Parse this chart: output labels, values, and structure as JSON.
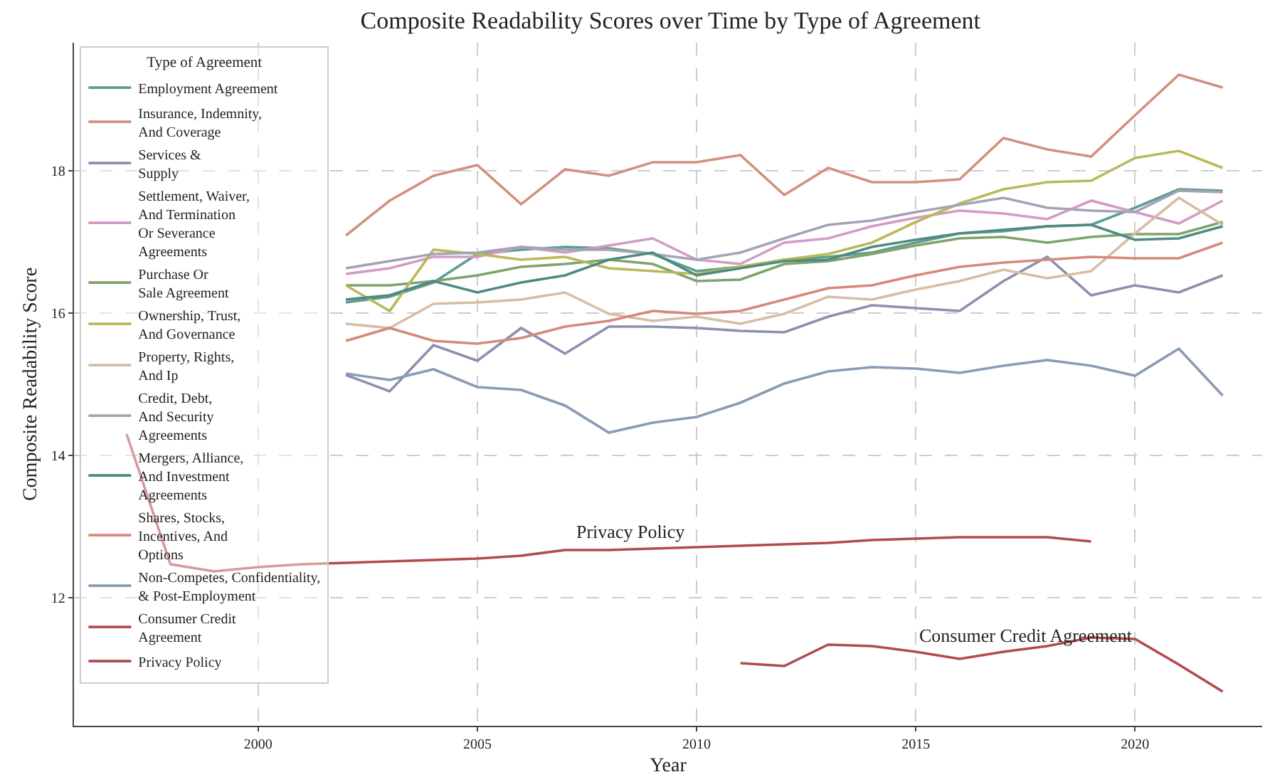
{
  "chart_data": {
    "type": "line",
    "title": "Composite Readability Scores over Time by Type of Agreement",
    "xlabel": "Year",
    "ylabel": "Composite Readability Score",
    "legend_title": "Type of Agreement",
    "legend": "top left",
    "grid": true,
    "line_style": "solid",
    "marker": "none",
    "xlim": [
      1995.8,
      2022.9
    ],
    "xticks": [
      2000,
      2005,
      2010,
      2015,
      2020
    ],
    "ylim": [
      10.2,
      19.8
    ],
    "yticks": [
      12,
      14,
      16,
      18
    ],
    "x": [
      2002,
      2003,
      2004,
      2005,
      2006,
      2007,
      2008,
      2009,
      2010,
      2011,
      2012,
      2013,
      2014,
      2015,
      2016,
      2017,
      2018,
      2019,
      2020,
      2021,
      2022
    ],
    "series": [
      {
        "name": "Employment Agreement",
        "color": "#5f9e8f",
        "values": [
          16.15,
          16.23,
          16.43,
          16.83,
          16.89,
          16.93,
          16.91,
          16.83,
          16.59,
          16.65,
          16.75,
          16.79,
          16.85,
          16.99,
          17.12,
          17.15,
          17.22,
          17.24,
          17.48,
          17.74,
          17.72
        ]
      },
      {
        "name": "Insurance, Indemnity,\nAnd Coverage",
        "color": "#d4907f",
        "values": [
          17.09,
          17.58,
          17.93,
          18.08,
          17.53,
          18.02,
          17.93,
          18.12,
          18.12,
          18.22,
          17.66,
          18.04,
          17.84,
          17.84,
          17.88,
          18.46,
          18.3,
          18.2,
          18.78,
          19.35,
          19.17
        ]
      },
      {
        "name": "Services &\nSupply",
        "color": "#8e8fb0",
        "values": [
          15.13,
          14.9,
          15.55,
          15.33,
          15.79,
          15.43,
          15.81,
          15.81,
          15.79,
          15.75,
          15.73,
          15.95,
          16.11,
          16.07,
          16.03,
          16.45,
          16.79,
          16.25,
          16.39,
          16.29,
          16.53
        ]
      },
      {
        "name": "Settlement, Waiver,\nAnd Termination\nOr Severance\nAgreements",
        "color": "#d39bc4",
        "values": [
          16.55,
          16.63,
          16.79,
          16.79,
          16.93,
          16.85,
          16.95,
          17.05,
          16.75,
          16.69,
          16.99,
          17.05,
          17.22,
          17.34,
          17.44,
          17.4,
          17.32,
          17.58,
          17.42,
          17.26,
          17.58
        ]
      },
      {
        "name": "Purchase Or\nSale Agreement",
        "color": "#7fa36a",
        "values": [
          16.39,
          16.39,
          16.45,
          16.53,
          16.65,
          16.69,
          16.75,
          16.69,
          16.45,
          16.47,
          16.69,
          16.73,
          16.83,
          16.95,
          17.05,
          17.07,
          16.99,
          17.07,
          17.11,
          17.11,
          17.28
        ]
      },
      {
        "name": "Ownership, Trust,\nAnd Governance",
        "color": "#b9b95a",
        "values": [
          16.39,
          16.03,
          16.89,
          16.83,
          16.75,
          16.79,
          16.63,
          16.59,
          16.55,
          16.65,
          16.75,
          16.83,
          16.99,
          17.28,
          17.54,
          17.74,
          17.84,
          17.86,
          18.18,
          18.28,
          18.04
        ]
      },
      {
        "name": "Property, Rights,\nAnd Ip",
        "color": "#d6bda6",
        "values": [
          15.85,
          15.79,
          16.13,
          16.15,
          16.19,
          16.29,
          15.99,
          15.89,
          15.95,
          15.85,
          15.99,
          16.23,
          16.19,
          16.33,
          16.45,
          16.61,
          16.49,
          16.59,
          17.12,
          17.62,
          17.24
        ]
      },
      {
        "name": "Credit, Debt,\nAnd Security\nAgreements",
        "color": "#a3a3b5",
        "values": [
          16.63,
          16.73,
          16.83,
          16.85,
          16.93,
          16.89,
          16.89,
          16.83,
          16.75,
          16.85,
          17.05,
          17.24,
          17.3,
          17.42,
          17.52,
          17.62,
          17.48,
          17.44,
          17.42,
          17.72,
          17.7
        ]
      },
      {
        "name": "Mergers, Alliance,\nAnd Investment\nAgreements",
        "color": "#4f8a82",
        "values": [
          16.19,
          16.25,
          16.45,
          16.29,
          16.43,
          16.53,
          16.75,
          16.85,
          16.53,
          16.63,
          16.73,
          16.75,
          16.93,
          17.03,
          17.12,
          17.17,
          17.22,
          17.24,
          17.03,
          17.05,
          17.22
        ]
      },
      {
        "name": "Shares, Stocks,\nIncentives, And\nOptions",
        "color": "#d5897a",
        "values": [
          15.61,
          15.79,
          15.61,
          15.57,
          15.65,
          15.81,
          15.89,
          16.03,
          15.99,
          16.03,
          16.19,
          16.35,
          16.39,
          16.53,
          16.65,
          16.71,
          16.75,
          16.79,
          16.77,
          16.77,
          16.99
        ]
      },
      {
        "name": "Non-Competes, Confidentiality,\n& Post-Employment",
        "color": "#8a9bb5",
        "values": [
          15.15,
          15.06,
          15.21,
          14.96,
          14.92,
          14.7,
          14.32,
          14.46,
          14.54,
          14.74,
          15.01,
          15.18,
          15.24,
          15.22,
          15.16,
          15.26,
          15.34,
          15.26,
          15.12,
          15.5,
          14.84
        ]
      },
      {
        "name": "Consumer Credit\nAgreement",
        "color": "#b24a4e",
        "x": [
          2011,
          2012,
          2013,
          2014,
          2015,
          2016,
          2017,
          2018,
          2019,
          2020,
          2021,
          2022
        ],
        "values": [
          11.08,
          11.04,
          11.34,
          11.32,
          11.24,
          11.14,
          11.24,
          11.32,
          11.44,
          11.42,
          11.06,
          10.68
        ]
      },
      {
        "name": "Privacy Policy",
        "color": "#b24a4e",
        "x": [
          1997,
          1998,
          1999,
          2000,
          2001,
          2002,
          2003,
          2004,
          2005,
          2006,
          2007,
          2008,
          2009,
          2010,
          2011,
          2012,
          2013,
          2014,
          2015,
          2016,
          2017,
          2018,
          2019
        ],
        "values": [
          14.3,
          12.47,
          12.37,
          12.43,
          12.47,
          12.49,
          12.51,
          12.53,
          12.55,
          12.59,
          12.67,
          12.67,
          12.69,
          12.71,
          12.73,
          12.75,
          12.77,
          12.81,
          12.83,
          12.85,
          12.85,
          12.85,
          12.79
        ]
      }
    ],
    "annotations": [
      {
        "text": "Privacy Policy",
        "x": 2008.5,
        "y": 12.75
      },
      {
        "text": "Consumer Credit Agreement",
        "x": 2017.5,
        "y": 11.3
      }
    ]
  }
}
